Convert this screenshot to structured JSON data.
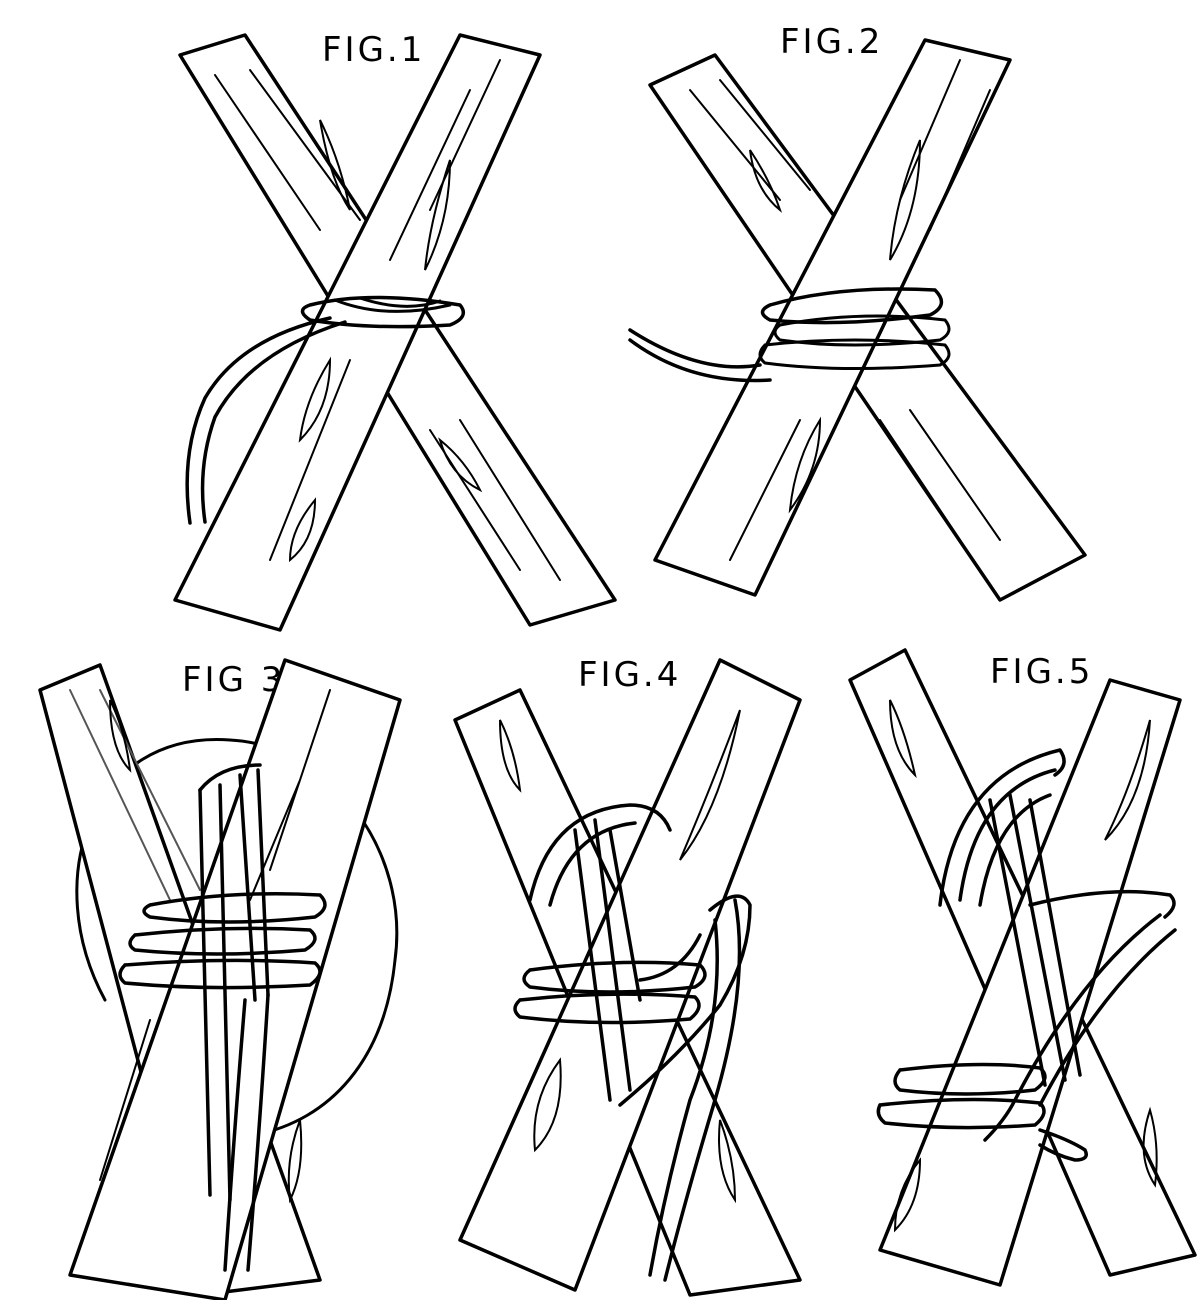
{
  "figures": [
    {
      "id": "fig1",
      "label": "FIG.1"
    },
    {
      "id": "fig2",
      "label": "FIG.2"
    },
    {
      "id": "fig3",
      "label": "FIG 3"
    },
    {
      "id": "fig4",
      "label": "FIG.4"
    },
    {
      "id": "fig5",
      "label": "FIG.5"
    }
  ]
}
